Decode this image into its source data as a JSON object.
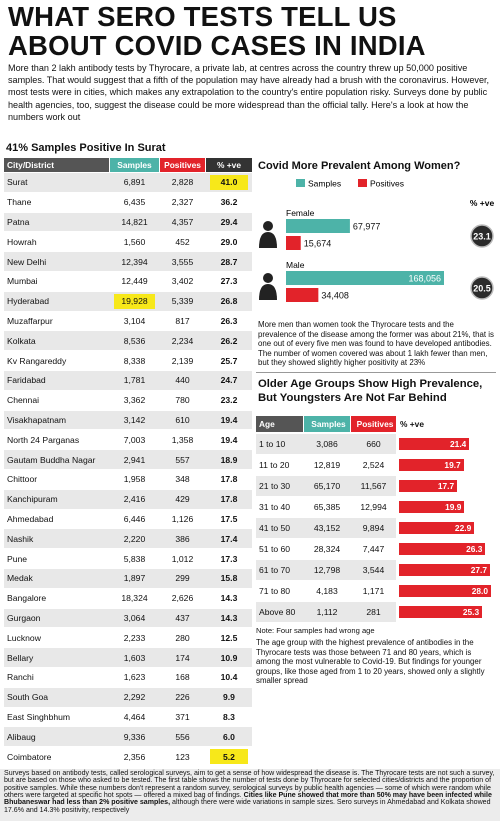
{
  "header": {
    "title_line1": "WHAT SERO TESTS TELL US",
    "title_line2": "ABOUT COVID CASES IN INDIA",
    "intro": "More than 2 lakh antibody tests by Thyrocare, a private lab, at centres across the country threw up 50,000 positive samples. That would suggest that a fifth of the population may have already had a brush with the coronavirus. However, most tests were in cities, which makes any extrapolation to the country's entire population risky. Surveys done by public health agencies, too, suggest the disease could be more widespread than the official tally. Here's a look at how the numbers work out"
  },
  "city_table": {
    "title": "41% Samples Positive In Surat",
    "headers": [
      "City/District",
      "Samples",
      "Positives",
      "% +ve"
    ],
    "rows": [
      [
        "Surat",
        "6,891",
        "2,828",
        "41.0"
      ],
      [
        "Thane",
        "6,435",
        "2,327",
        "36.2"
      ],
      [
        "Patna",
        "14,821",
        "4,357",
        "29.4"
      ],
      [
        "Howrah",
        "1,560",
        "452",
        "29.0"
      ],
      [
        "New Delhi",
        "12,394",
        "3,555",
        "28.7"
      ],
      [
        "Mumbai",
        "12,449",
        "3,402",
        "27.3"
      ],
      [
        "Hyderabad",
        "19,928",
        "5,339",
        "26.8"
      ],
      [
        "Muzaffarpur",
        "3,104",
        "817",
        "26.3"
      ],
      [
        "Kolkata",
        "8,536",
        "2,234",
        "26.2"
      ],
      [
        "Kv Rangareddy",
        "8,338",
        "2,139",
        "25.7"
      ],
      [
        "Faridabad",
        "1,781",
        "440",
        "24.7"
      ],
      [
        "Chennai",
        "3,362",
        "780",
        "23.2"
      ],
      [
        "Visakhapatnam",
        "3,142",
        "610",
        "19.4"
      ],
      [
        "North 24 Parganas",
        "7,003",
        "1,358",
        "19.4"
      ],
      [
        "Gautam Buddha Nagar",
        "2,941",
        "557",
        "18.9"
      ],
      [
        "Chittoor",
        "1,958",
        "348",
        "17.8"
      ],
      [
        "Kanchipuram",
        "2,416",
        "429",
        "17.8"
      ],
      [
        "Ahmedabad",
        "6,446",
        "1,126",
        "17.5"
      ],
      [
        "Nashik",
        "2,220",
        "386",
        "17.4"
      ],
      [
        "Pune",
        "5,838",
        "1,012",
        "17.3"
      ],
      [
        "Medak",
        "1,897",
        "299",
        "15.8"
      ],
      [
        "Bangalore",
        "18,324",
        "2,626",
        "14.3"
      ],
      [
        "Gurgaon",
        "3,064",
        "437",
        "14.3"
      ],
      [
        "Lucknow",
        "2,233",
        "280",
        "12.5"
      ],
      [
        "Bellary",
        "1,603",
        "174",
        "10.9"
      ],
      [
        "Ranchi",
        "1,623",
        "168",
        "10.4"
      ],
      [
        "South Goa",
        "2,292",
        "226",
        "9.9"
      ],
      [
        "East Singhbhum",
        "4,464",
        "371",
        "8.3"
      ],
      [
        "Alibaug",
        "9,336",
        "556",
        "6.0"
      ],
      [
        "Coimbatore",
        "2,356",
        "123",
        "5.2"
      ]
    ]
  },
  "gender": {
    "title": "Covid More Prevalent Among Women?",
    "pct_header": "% +ve",
    "groups": [
      "Female",
      "Male"
    ],
    "pct": [
      "23.1",
      "20.5"
    ],
    "series": [
      {
        "name": "Samples",
        "color": "#4db3a8",
        "values": [
          67977,
          168056
        ],
        "value_labels": [
          "67,977",
          "168,056"
        ]
      },
      {
        "name": "Positives",
        "color": "#e2232a",
        "values": [
          15674,
          34408
        ],
        "value_labels": [
          "15,674",
          "34,408"
        ]
      }
    ],
    "text": "More men than women took the Thyrocare tests and the prevalence of the disease among the former was about 21%, that is one out of every five men was found to have developed antibodies. The number of women covered was about 1 lakh fewer than men, but they showed slightly higher positivity at 23%"
  },
  "age_table": {
    "title": "Older Age Groups Show High Prevalence, But Youngsters Are Not Far Behind",
    "headers": [
      "Age",
      "Samples",
      "Positives",
      "% +ve"
    ],
    "rows": [
      [
        "1 to 10",
        "3,086",
        "660"
      ],
      [
        "11 to 20",
        "12,819",
        "2,524"
      ],
      [
        "21 to 30",
        "65,170",
        "11,567"
      ],
      [
        "31 to 40",
        "65,385",
        "12,994"
      ],
      [
        "41 to 50",
        "43,152",
        "9,894"
      ],
      [
        "51 to 60",
        "28,324",
        "7,447"
      ],
      [
        "61 to 70",
        "12,798",
        "3,544"
      ],
      [
        "71 to 80",
        "4,183",
        "1,171"
      ],
      [
        "Above 80",
        "1,112",
        "281"
      ]
    ],
    "pct": [
      21.4,
      19.7,
      17.7,
      19.9,
      22.9,
      26.3,
      27.7,
      28.0,
      25.3
    ],
    "pct_labels": [
      "21.4",
      "19.7",
      "17.7",
      "19.9",
      "22.9",
      "26.3",
      "27.7",
      "28.0",
      "25.3"
    ],
    "color": "#e2232a",
    "note": "Note: Four samples had wrong age",
    "text": "The age group with the highest prevalence of antibodies in the Thyrocare tests was those between 71 and 80 years, which is among the most vulnerable to Covid-19. But findings for younger groups, like those aged from 1 to 20 years, showed only a slightly smaller spread"
  },
  "footer": {
    "text_start": "Surveys based on antibody tests, called serological surveys, aim to get a sense of how widespread the disease is. The Thyrocare tests are not such a survey, but are based on those who asked to be tested. The first table shows the number of tests done by Thyrocare for selected cities/districts and the proportion of positive samples. While these numbers don't represent a random survey, serological surveys by public health agencies — some of which were random while others were targeted at specific hot spots — offered a mixed bag of findings.",
    "text_bold": "Cities like Pune showed that more than 50% may have been infected while Bhubaneswar had less than 2% positive samples,",
    "text_end": "although there were wide variations in sample sizes. Sero surveys in Ahmedabad and Kolkata showed 17.6% and 14.3% positivity, respectively"
  }
}
